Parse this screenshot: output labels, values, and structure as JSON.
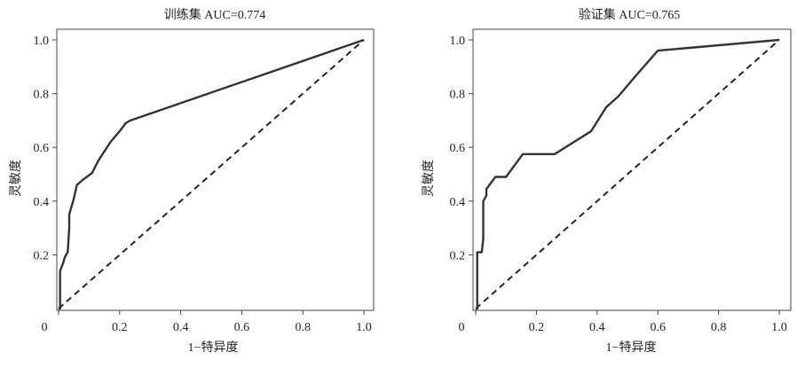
{
  "chart_data": [
    {
      "type": "line",
      "title": "训练集 AUC=0.774",
      "xlabel": "1−特异度",
      "ylabel": "灵敏度",
      "xlim": [
        0,
        1
      ],
      "ylim": [
        0,
        1
      ],
      "x_ticks": [
        "0",
        "0.2",
        "0.4",
        "0.6",
        "0.8",
        "1.0"
      ],
      "y_ticks": [
        "0.2",
        "0.4",
        "0.6",
        "0.8",
        "1.0"
      ],
      "legend": "none",
      "grid": false,
      "reference_line": {
        "style": "dashed",
        "from": [
          0,
          0
        ],
        "to": [
          1,
          1
        ]
      },
      "series": [
        {
          "x": [
            0,
            0.005,
            0.005,
            0.015,
            0.02,
            0.03,
            0.035,
            0.035,
            0.05,
            0.06,
            0.08,
            0.11,
            0.13,
            0.17,
            0.2,
            0.22,
            0.235,
            1.0
          ],
          "y": [
            0,
            0,
            0.14,
            0.17,
            0.19,
            0.21,
            0.3,
            0.35,
            0.41,
            0.46,
            0.48,
            0.505,
            0.55,
            0.62,
            0.66,
            0.69,
            0.7,
            1.0
          ]
        }
      ]
    },
    {
      "type": "line",
      "title": "验证集 AUC=0.765",
      "xlabel": "1−特异度",
      "ylabel": "灵敏度",
      "xlim": [
        0,
        1
      ],
      "ylim": [
        0,
        1
      ],
      "x_ticks": [
        "0",
        "0.2",
        "0.4",
        "0.6",
        "0.8",
        "1.0"
      ],
      "y_ticks": [
        "0.2",
        "0.4",
        "0.6",
        "0.8",
        "1.0"
      ],
      "legend": "none",
      "grid": false,
      "reference_line": {
        "style": "dashed",
        "from": [
          0,
          0
        ],
        "to": [
          1,
          1
        ]
      },
      "series": [
        {
          "x": [
            0,
            0.005,
            0.005,
            0.02,
            0.025,
            0.025,
            0.035,
            0.035,
            0.045,
            0.065,
            0.1,
            0.155,
            0.26,
            0.38,
            0.43,
            0.47,
            0.53,
            0.6,
            1.0
          ],
          "y": [
            0,
            0,
            0.21,
            0.21,
            0.26,
            0.4,
            0.42,
            0.445,
            0.46,
            0.49,
            0.49,
            0.575,
            0.575,
            0.66,
            0.75,
            0.79,
            0.87,
            0.96,
            1.0
          ]
        }
      ]
    }
  ]
}
